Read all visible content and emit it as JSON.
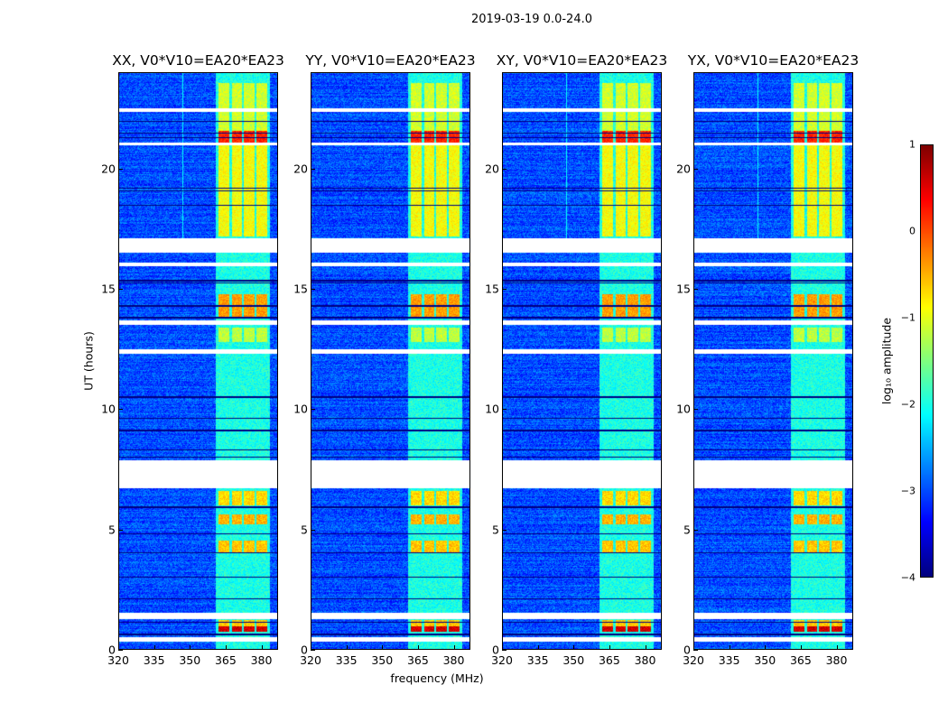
{
  "suptitle": "2019-03-19 0.0-24.0",
  "chart_data": [
    {
      "type": "heatmap",
      "title": "XX, V0*V10=EA20*EA23",
      "seed": 11,
      "rfi_line_mhz": 347
    },
    {
      "type": "heatmap",
      "title": "YY, V0*V10=EA20*EA23",
      "seed": 23,
      "rfi_line_mhz": null
    },
    {
      "type": "heatmap",
      "title": "XY, V0*V10=EA20*EA23",
      "seed": 37,
      "rfi_line_mhz": 347
    },
    {
      "type": "heatmap",
      "title": "YX, V0*V10=EA20*EA23",
      "seed": 53,
      "rfi_line_mhz": 347
    }
  ],
  "shared": {
    "xlabel": "frequency (MHz)",
    "ylabel": "UT (hours)",
    "xlim": [
      320,
      387
    ],
    "ylim": [
      0,
      24
    ],
    "xticks": [
      "320",
      "335",
      "350",
      "365",
      "380"
    ],
    "xtick_values": [
      320,
      335,
      350,
      365,
      380
    ],
    "yticks": [
      "0",
      "5",
      "10",
      "15",
      "20"
    ],
    "ytick_values": [
      0,
      5,
      10,
      15,
      20
    ],
    "background_log_amp": -3.0,
    "band_log_amp": -2.0,
    "channel_blocks_mhz": [
      [
        362.3,
        366.8
      ],
      [
        367.9,
        372.1
      ],
      [
        372.8,
        377.4
      ],
      [
        378.1,
        382.6
      ]
    ],
    "bright_intervals_hours": [
      {
        "range": [
          0.7,
          0.95
        ],
        "log_amp": 0.6
      },
      {
        "range": [
          0.95,
          1.2
        ],
        "log_amp": -0.6
      },
      {
        "range": [
          4.0,
          4.5
        ],
        "log_amp": -0.6
      },
      {
        "range": [
          5.2,
          5.6
        ],
        "log_amp": -0.5
      },
      {
        "range": [
          6.0,
          6.6
        ],
        "log_amp": -0.7
      },
      {
        "range": [
          12.8,
          13.4
        ],
        "log_amp": -1.2
      },
      {
        "range": [
          13.8,
          14.8
        ],
        "log_amp": -0.4
      },
      {
        "range": [
          17.2,
          21.0
        ],
        "log_amp": -0.9
      },
      {
        "range": [
          21.1,
          21.6
        ],
        "log_amp": 0.2
      },
      {
        "range": [
          21.6,
          23.6
        ],
        "log_amp": -1.1
      }
    ],
    "flagged_hours": [
      [
        0.3,
        0.48
      ],
      [
        1.25,
        1.5
      ],
      [
        6.7,
        7.85
      ],
      [
        12.3,
        12.5
      ],
      [
        13.5,
        13.7
      ],
      [
        15.95,
        16.1
      ],
      [
        16.5,
        17.1
      ],
      [
        21.0,
        21.1
      ],
      [
        22.4,
        22.55
      ]
    ],
    "dark_lines_hours": [
      0.6,
      1.1,
      2.1,
      3.0,
      4.0,
      4.8,
      5.9,
      8.0,
      8.3,
      9.1,
      9.6,
      10.5,
      13.8,
      14.3,
      15.25,
      15.35,
      18.5,
      19.1,
      19.2,
      21.3,
      21.5,
      22.0
    ]
  },
  "colorbar": {
    "label": "log₁₀ amplitude",
    "colormap": "jet",
    "range": [
      -4,
      1
    ],
    "ticks": [
      "1",
      "0",
      "−1",
      "−2",
      "−3",
      "−4"
    ],
    "tick_values": [
      1,
      0,
      -1,
      -2,
      -3,
      -4
    ]
  }
}
